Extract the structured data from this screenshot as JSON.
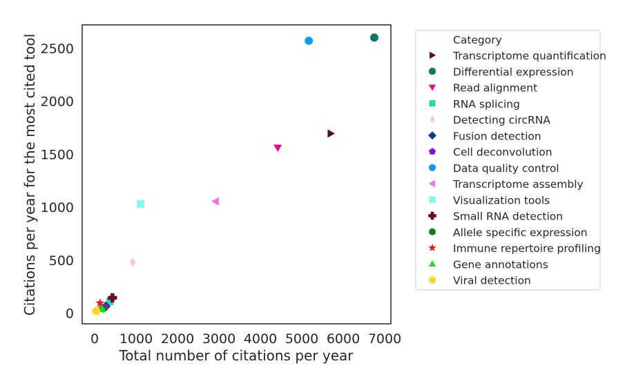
{
  "chart_data": {
    "type": "scatter",
    "xlabel": "Total number of citations per year",
    "ylabel": "Citations per year for the most cited tool",
    "xlim": [
      -300,
      7150
    ],
    "ylim": [
      -100,
      2720
    ],
    "xticks": [
      0,
      1000,
      2000,
      3000,
      4000,
      5000,
      6000,
      7000
    ],
    "yticks": [
      0,
      500,
      1000,
      1500,
      2000,
      2500
    ],
    "grid": false,
    "legend": {
      "title": "Category",
      "placement": "outside-right"
    },
    "series": [
      {
        "name": "Transcriptome quantification",
        "color": "#5b0a3c",
        "marker": "triangle-right",
        "x": 5700,
        "y": 1695
      },
      {
        "name": "Differential expression",
        "color": "#0e7a6a",
        "marker": "octagon",
        "x": 6750,
        "y": 2600
      },
      {
        "name": "Read alignment",
        "color": "#e8088f",
        "marker": "triangle-down",
        "x": 4420,
        "y": 1560
      },
      {
        "name": "RNA splicing",
        "color": "#22d8b0",
        "marker": "square",
        "x": 370,
        "y": 110
      },
      {
        "name": "Detecting circRNA",
        "color": "#ffc8d8",
        "marker": "thin-diamond",
        "x": 920,
        "y": 480
      },
      {
        "name": "Fusion detection",
        "color": "#0a3a8a",
        "marker": "diamond",
        "x": 270,
        "y": 65
      },
      {
        "name": "Cell deconvolution",
        "color": "#8a10d8",
        "marker": "pentagon",
        "x": 250,
        "y": 60
      },
      {
        "name": "Data quality control",
        "color": "#129af0",
        "marker": "circle",
        "x": 5170,
        "y": 2570
      },
      {
        "name": "Transcriptome assembly",
        "color": "#f06ef0",
        "marker": "triangle-left",
        "x": 2920,
        "y": 1055
      },
      {
        "name": "Visualization tools",
        "color": "#7afcea",
        "marker": "x",
        "x": 1110,
        "y": 1030
      },
      {
        "name": "Small RNA detection",
        "color": "#6e0a1a",
        "marker": "plus",
        "x": 430,
        "y": 145
      },
      {
        "name": "Allele specific expression",
        "color": "#0a7a22",
        "marker": "hexagon",
        "x": 200,
        "y": 45
      },
      {
        "name": "Immune repertoire profiling",
        "color": "#f01010",
        "marker": "star",
        "x": 130,
        "y": 95
      },
      {
        "name": "Gene annotations",
        "color": "#20d820",
        "marker": "triangle-up",
        "x": 180,
        "y": 40
      },
      {
        "name": "Viral detection",
        "color": "#f8d820",
        "marker": "circle",
        "x": 40,
        "y": 20
      }
    ]
  }
}
